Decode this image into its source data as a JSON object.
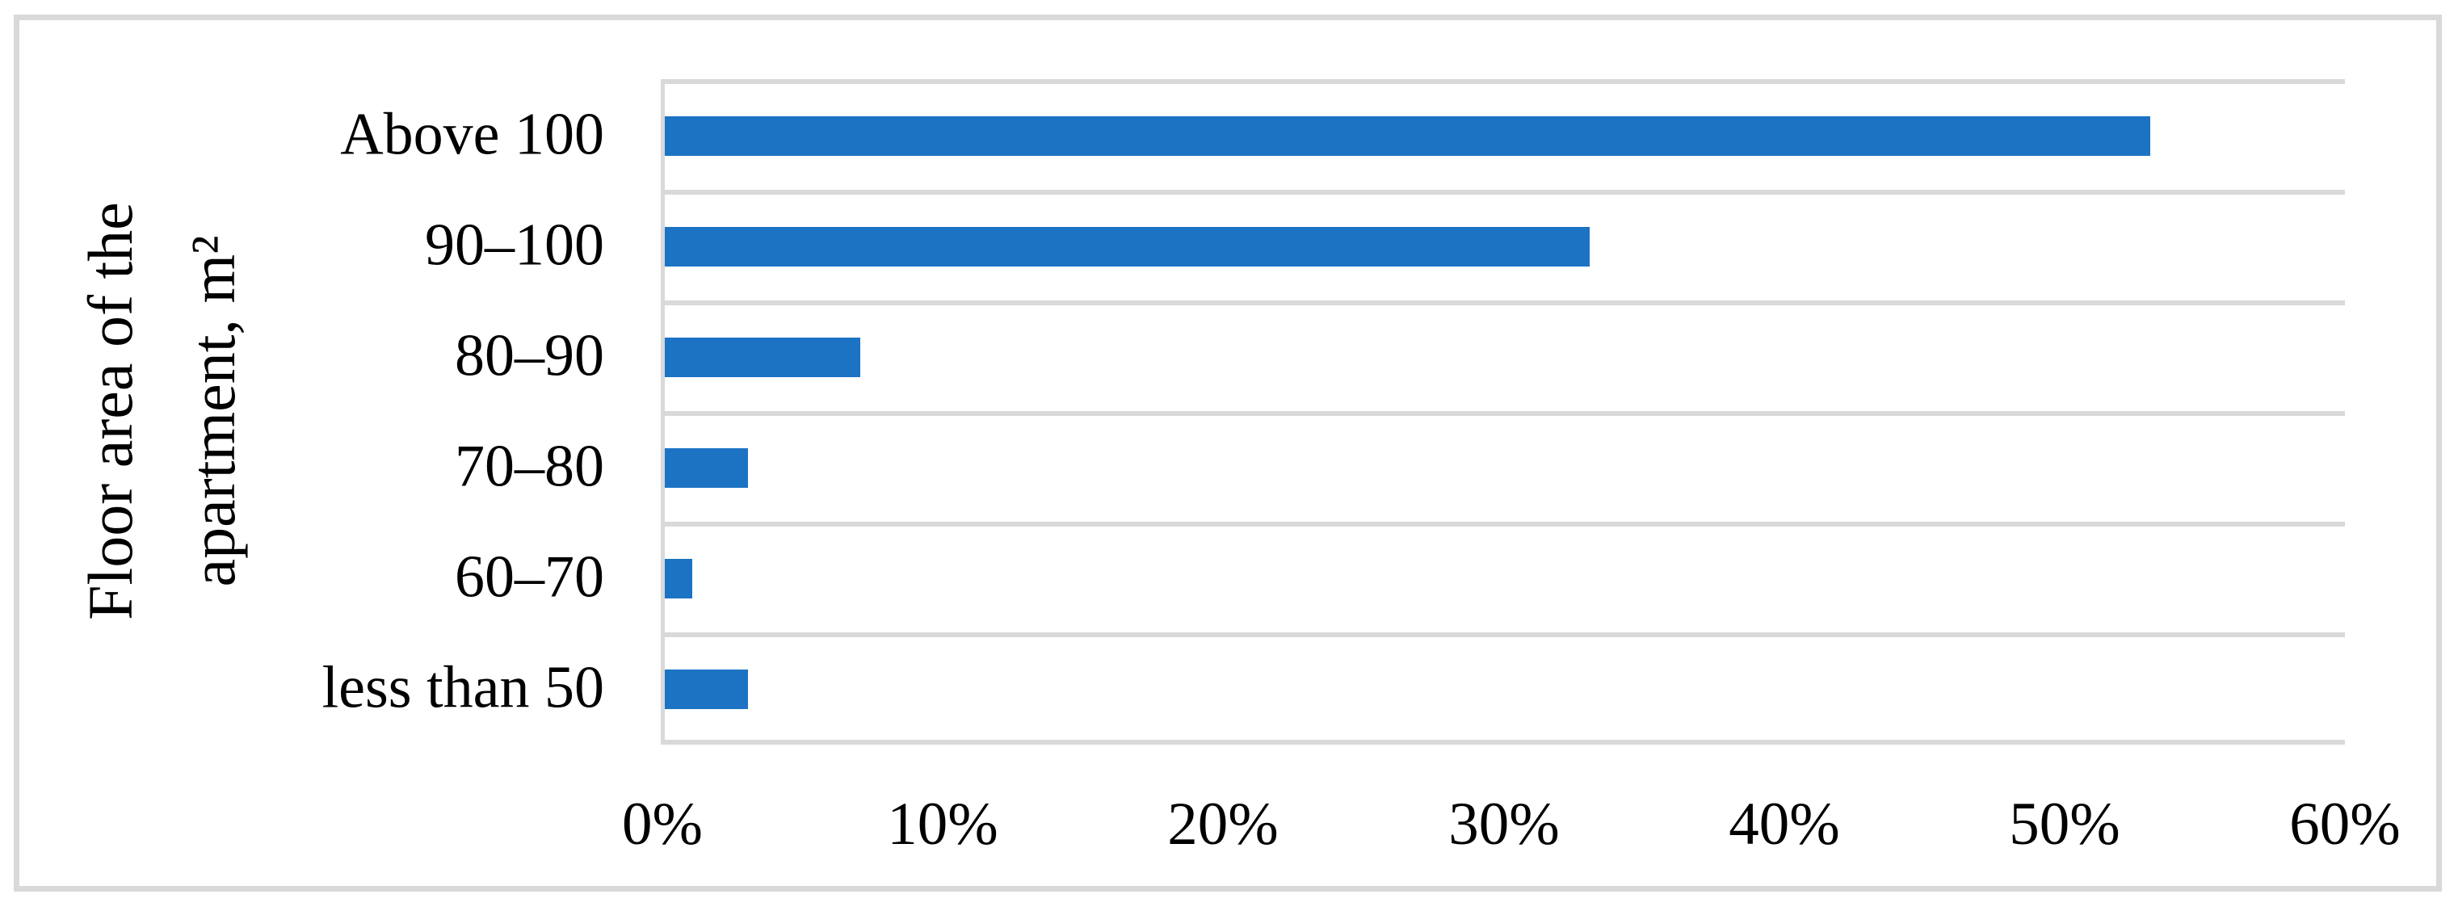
{
  "figure": {
    "background_color": "#ffffff",
    "border_color": "#d9d9d9"
  },
  "chart_data": {
    "type": "bar",
    "orientation": "horizontal",
    "title": "",
    "ylabel_lines": [
      "Floor area of the",
      "apartment, m²"
    ],
    "xlabel": "",
    "categories": [
      "Above 100",
      "90–100",
      "80–90",
      "70–80",
      "60–70",
      "less than 50"
    ],
    "values": [
      53,
      33,
      7,
      3,
      1,
      3
    ],
    "value_unit": "%",
    "xlim": [
      0,
      60
    ],
    "x_ticks": [
      "0%",
      "10%",
      "20%",
      "30%",
      "40%",
      "50%",
      "60%"
    ],
    "grid": "horizontal category separator lines only",
    "legend": "none",
    "bar_color": "#1c73c4",
    "grid_color": "#d9d9d9",
    "text_color": "#000000"
  }
}
